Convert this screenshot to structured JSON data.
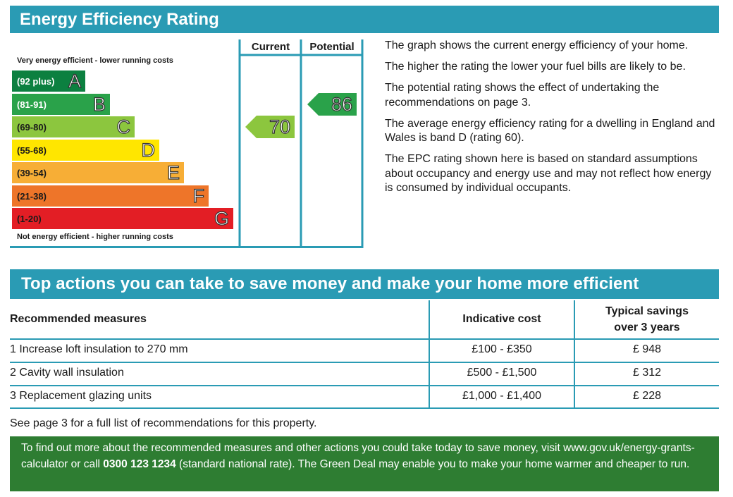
{
  "epc": {
    "title": "Energy Efficiency Rating",
    "top_note": "Very energy efficient - lower running costs",
    "bottom_note": "Not energy efficient - higher running costs",
    "col_current": "Current",
    "col_potential": "Potential",
    "bands": [
      {
        "range": "(92 plus)",
        "letter": "A",
        "color": "#0c8040",
        "text_color": "#ffffff"
      },
      {
        "range": "(81-91)",
        "letter": "B",
        "color": "#2aa24a",
        "text_color": "#ffffff"
      },
      {
        "range": "(69-80)",
        "letter": "C",
        "color": "#8cc63e",
        "text_color": "#1a1a1a"
      },
      {
        "range": "(55-68)",
        "letter": "D",
        "color": "#ffe600",
        "text_color": "#1a1a1a"
      },
      {
        "range": "(39-54)",
        "letter": "E",
        "color": "#f7ae36",
        "text_color": "#1a1a1a"
      },
      {
        "range": "(21-38)",
        "letter": "F",
        "color": "#ee7529",
        "text_color": "#1a1a1a"
      },
      {
        "range": "(1-20)",
        "letter": "G",
        "color": "#e31e25",
        "text_color": "#1a1a1a"
      }
    ],
    "current": {
      "value": "70",
      "band": "C",
      "color": "#8cc63e"
    },
    "potential": {
      "value": "86",
      "band": "B",
      "color": "#2aa24a"
    }
  },
  "description": [
    "The graph shows the current energy efficiency of your home.",
    "The higher the rating the lower your fuel bills are likely to be.",
    "The potential rating shows the effect of undertaking the recommendations on page 3.",
    "The average energy efficiency rating for a dwelling in England and Wales is band D (rating 60).",
    "The EPC rating shown here is based on standard assumptions about occupancy and energy use and may not reflect how energy is consumed by individual occupants."
  ],
  "actions": {
    "title": "Top actions you can take to save money and make your home more efficient",
    "headers": {
      "measure": "Recommended measures",
      "cost": "Indicative cost",
      "savings_line1": "Typical savings",
      "savings_line2": "over 3 years"
    },
    "rows": [
      {
        "measure": "1  Increase loft insulation to 270 mm",
        "cost": "£100 - £350",
        "savings": "£ 948"
      },
      {
        "measure": "2  Cavity wall insulation",
        "cost": "£500 - £1,500",
        "savings": "£ 312"
      },
      {
        "measure": "3  Replacement glazing units",
        "cost": "£1,000 - £1,400",
        "savings": "£ 228"
      }
    ],
    "see_page": "See page 3 for a full list of recommendations for this property.",
    "info_part1": "To find out more about the recommended measures and other actions you could take today to save money, visit www.gov.uk/energy-grants-calculator or call ",
    "info_phone": "0300 123 1234",
    "info_part2": " (standard national rate). The Green Deal may enable you to make your home warmer and cheaper to run."
  },
  "colors": {
    "banner": "#2a9bb4",
    "green_box": "#2e7d32"
  }
}
